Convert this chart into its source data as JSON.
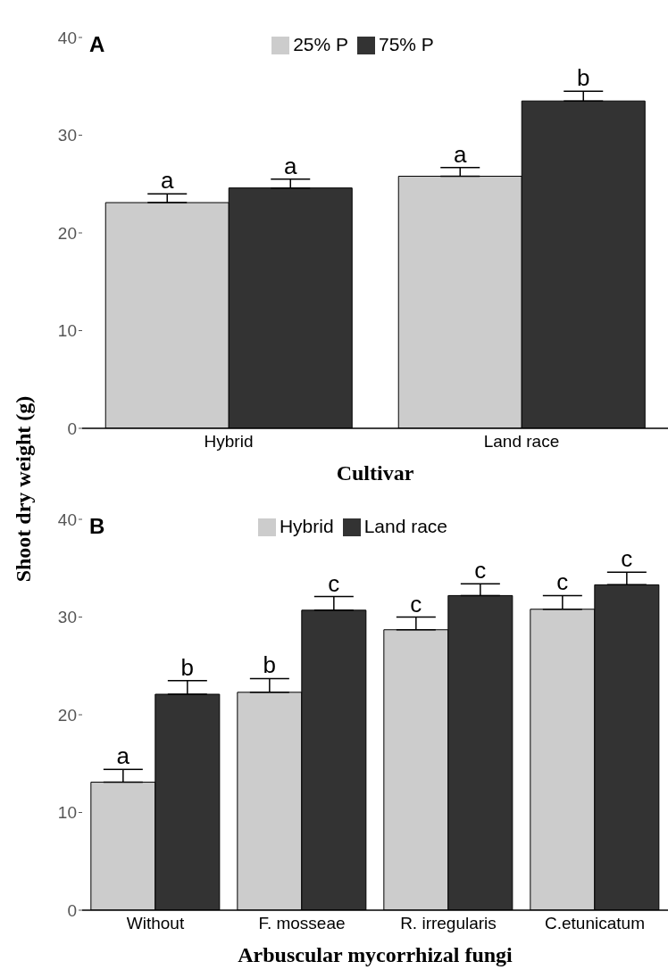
{
  "chart_data": [
    {
      "type": "bar",
      "title": "A",
      "xlabel": "Cultivar",
      "ylabel": "Shoot dry weight (g)",
      "categories": [
        "Hybrid",
        "Land race"
      ],
      "series": [
        {
          "name": "25% P",
          "color": "#cccccc",
          "values": [
            23.1,
            25.8
          ],
          "errors": [
            0.9,
            0.9
          ],
          "value_labels": [
            "a",
            "a"
          ]
        },
        {
          "name": "75% P",
          "color": "#333333",
          "values": [
            24.6,
            33.5
          ],
          "errors": [
            0.9,
            1.0
          ],
          "value_labels": [
            "a",
            "b"
          ]
        }
      ],
      "ylim": [
        0,
        40
      ],
      "yticks": [
        0,
        10,
        20,
        30,
        40
      ],
      "grid": false,
      "legend": "top"
    },
    {
      "type": "bar",
      "title": "B",
      "xlabel": "Arbuscular mycorrhizal fungi",
      "categories": [
        "Without",
        "F. mosseae",
        "R. irregularis",
        "C.etunicatum"
      ],
      "series": [
        {
          "name": "Hybrid",
          "color": "#cccccc",
          "values": [
            13.1,
            22.3,
            28.7,
            30.8
          ],
          "errors": [
            1.3,
            1.4,
            1.3,
            1.4
          ],
          "value_labels": [
            "a",
            "b",
            "c",
            "c"
          ]
        },
        {
          "name": "Land race",
          "color": "#333333",
          "values": [
            22.1,
            30.7,
            32.2,
            33.3
          ],
          "errors": [
            1.4,
            1.4,
            1.2,
            1.3
          ],
          "value_labels": [
            "b",
            "c",
            "c",
            "c"
          ]
        }
      ],
      "ylim": [
        0,
        40
      ],
      "yticks": [
        0,
        10,
        20,
        30,
        40
      ],
      "grid": false,
      "legend": "top"
    }
  ]
}
